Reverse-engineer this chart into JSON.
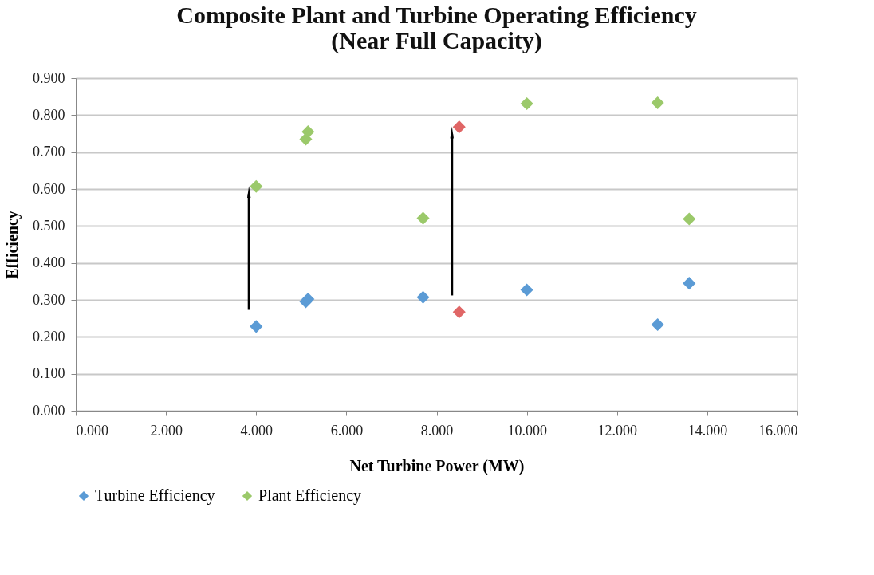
{
  "chart_data": {
    "type": "scatter",
    "title": [
      "Composite Plant and Turbine Operating Efficiency",
      "(Near Full Capacity)"
    ],
    "xlabel": "Net Turbine Power (MW)",
    "ylabel": "Efficiency",
    "x": [
      4.0,
      5.1,
      5.15,
      7.7,
      8.5,
      10.0,
      12.9,
      13.6
    ],
    "series": [
      {
        "name": "Turbine Efficiency",
        "color": "#5b9bd5",
        "colors": [
          "#5b9bd5",
          "#5b9bd5",
          "#5b9bd5",
          "#5b9bd5",
          "#e06666",
          "#5b9bd5",
          "#5b9bd5",
          "#5b9bd5"
        ],
        "values": [
          0.228,
          0.295,
          0.302,
          0.307,
          0.267,
          0.327,
          0.233,
          0.345
        ]
      },
      {
        "name": "Plant Efficiency",
        "color": "#9bc96a",
        "colors": [
          "#9bc96a",
          "#9bc96a",
          "#9bc96a",
          "#9bc96a",
          "#e06666",
          "#9bc96a",
          "#9bc96a",
          "#9bc96a"
        ],
        "values": [
          0.607,
          0.735,
          0.755,
          0.521,
          0.768,
          0.831,
          0.833,
          0.519
        ]
      }
    ],
    "xlim": [
      0,
      16
    ],
    "ylim": [
      0,
      0.9
    ],
    "xticks": [
      {
        "value": 0,
        "label": "0.000"
      },
      {
        "value": 2,
        "label": "2.000"
      },
      {
        "value": 4,
        "label": "4.000"
      },
      {
        "value": 6,
        "label": "6.000"
      },
      {
        "value": 8,
        "label": "8.000"
      },
      {
        "value": 10,
        "label": "10.000"
      },
      {
        "value": 12,
        "label": "12.000"
      },
      {
        "value": 14,
        "label": "14.000"
      },
      {
        "value": 16,
        "label": "16.000"
      }
    ],
    "yticks": [
      {
        "value": 0,
        "label": "0.000"
      },
      {
        "value": 0.1,
        "label": "0.100"
      },
      {
        "value": 0.2,
        "label": "0.200"
      },
      {
        "value": 0.3,
        "label": "0.300"
      },
      {
        "value": 0.4,
        "label": "0.400"
      },
      {
        "value": 0.5,
        "label": "0.500"
      },
      {
        "value": 0.6,
        "label": "0.600"
      },
      {
        "value": 0.7,
        "label": "0.700"
      },
      {
        "value": 0.8,
        "label": "0.800"
      },
      {
        "value": 0.9,
        "label": "0.900"
      }
    ],
    "grid": "y",
    "legend": "bottom",
    "marker": "diamond"
  }
}
